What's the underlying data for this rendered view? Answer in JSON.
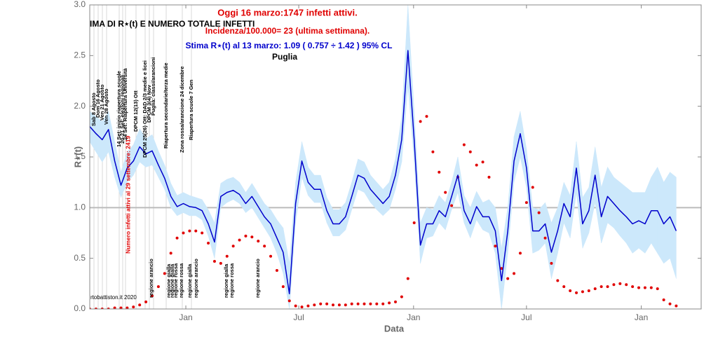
{
  "chart_data": {
    "type": "line",
    "title": "IMA DI R⋆(t) E NUMERO TOTALE INFETTI",
    "headline": "Oggi 16 marzo:1747 infetti attivi.",
    "incidence": "Incidenza/100.000= 23 (ultima settimana).",
    "estimate": "Stima R⋆(t) al 13 marzo: 1.09 ( 0.757 ÷ 1.42 ) 95% CL",
    "region": "Puglia",
    "credit": "rtobattiston.it 2020",
    "x_label": "Data",
    "y_label": "R⋆(t)",
    "red_note": "Numero infetti attivi al 29 settembre: 2419",
    "events": [
      "Sab 8 Agosto",
      "Dom 16 Agosto",
      "Ven 21 Agosto",
      "Ven 28 Agosto",
      "14 Set: inizio riapertura scuole",
      "20-21 Set: elezioni regionali",
      "24 Set: Riapertura Università",
      "DPCM 12(13) Ott",
      "DPCM 25(26) Ott: DAD 2/3 medie e licei",
      "DPCM 3(4) Nov",
      "Puglia: classi/arancioni",
      "Riapertura secondarie/terza medie",
      "Zona rossa/arancione 24 dicembre",
      "Riapertura scuole 7 Gen"
    ],
    "zones": [
      "regione arancio",
      "regione gialla",
      "regione gialla",
      "regione rossa",
      "regione rossa",
      "regione gialla",
      "regione arancio",
      "regione gialla",
      "regione rossa",
      "regione arancio"
    ],
    "xlim": [
      0,
      980
    ],
    "xticks": [
      {
        "value": 154,
        "label": "Jan"
      },
      {
        "value": 335,
        "label": "Jul"
      },
      {
        "value": 519,
        "label": "Jan"
      },
      {
        "value": 700,
        "label": "Jul"
      },
      {
        "value": 884,
        "label": "Jan"
      }
    ],
    "ylim": [
      0,
      3
    ],
    "yticks": [
      {
        "value": 0,
        "label": "0.0"
      },
      0.5,
      {
        "value": 1,
        "label": "1.0"
      },
      1.5,
      {
        "value": 2,
        "label": "2.0"
      },
      2.5,
      {
        "value": 3,
        "label": "3.0"
      }
    ],
    "reference_line": 1,
    "x": [
      0,
      10,
      20,
      30,
      40,
      50,
      60,
      70,
      80,
      90,
      100,
      110,
      120,
      130,
      140,
      150,
      160,
      170,
      180,
      190,
      200,
      210,
      220,
      230,
      240,
      250,
      260,
      270,
      280,
      290,
      300,
      310,
      320,
      330,
      340,
      350,
      360,
      370,
      380,
      390,
      400,
      410,
      420,
      430,
      440,
      450,
      460,
      470,
      480,
      490,
      500,
      510,
      520,
      530,
      540,
      550,
      560,
      570,
      580,
      590,
      600,
      610,
      620,
      630,
      640,
      650,
      660,
      670,
      680,
      690,
      700,
      710,
      720,
      730,
      740,
      750,
      760,
      770,
      780,
      790,
      800,
      810,
      820,
      830,
      840,
      850,
      860,
      870,
      880,
      890,
      900,
      910,
      920,
      930,
      940
    ],
    "series": [
      {
        "color": "#0000cc",
        "band_color": "#cce8fb",
        "values": [
          1.8,
          1.73,
          1.67,
          1.77,
          1.46,
          1.22,
          1.39,
          1.46,
          1.6,
          1.53,
          1.56,
          1.42,
          1.29,
          1.11,
          1.01,
          1.04,
          1.01,
          1.0,
          0.97,
          0.84,
          0.66,
          1.11,
          1.15,
          1.17,
          1.13,
          1.04,
          1.11,
          1.01,
          0.91,
          0.84,
          0.7,
          0.56,
          0.15,
          1.04,
          1.46,
          1.25,
          1.18,
          1.18,
          0.97,
          0.84,
          0.84,
          0.91,
          1.11,
          1.32,
          1.29,
          1.18,
          1.11,
          1.04,
          1.11,
          1.32,
          1.67,
          2.55,
          1.67,
          0.63,
          0.84,
          0.84,
          0.97,
          0.91,
          1.11,
          1.32,
          0.97,
          0.84,
          1.01,
          0.91,
          0.91,
          0.77,
          0.28,
          0.77,
          1.46,
          1.73,
          1.39,
          0.77,
          0.77,
          0.84,
          0.56,
          0.77,
          1.04,
          0.91,
          1.39,
          0.84,
          0.97,
          1.32,
          0.91,
          1.11,
          1.04,
          0.97,
          0.91,
          0.84,
          0.87,
          0.84,
          0.97,
          0.97,
          0.84,
          0.91,
          0.77
        ],
        "band_low": [
          1.65,
          1.55,
          1.45,
          1.55,
          1.3,
          1.1,
          1.25,
          1.32,
          1.45,
          1.4,
          1.42,
          1.3,
          1.18,
          1.0,
          0.92,
          0.95,
          0.92,
          0.92,
          0.88,
          0.72,
          0.5,
          1.0,
          1.05,
          1.08,
          1.04,
          0.95,
          1.0,
          0.9,
          0.8,
          0.7,
          0.55,
          0.35,
          0.0,
          0.85,
          1.3,
          1.12,
          1.05,
          1.05,
          0.85,
          0.72,
          0.72,
          0.78,
          0.98,
          1.18,
          1.15,
          1.05,
          0.98,
          0.92,
          0.98,
          1.18,
          1.45,
          2.2,
          1.45,
          0.45,
          0.7,
          0.72,
          0.85,
          0.78,
          0.98,
          1.15,
          0.85,
          0.7,
          0.88,
          0.78,
          0.75,
          0.55,
          0.0,
          0.55,
          1.25,
          1.5,
          1.2,
          0.55,
          0.58,
          0.65,
          0.3,
          0.55,
          0.85,
          0.7,
          1.15,
          0.6,
          0.75,
          1.05,
          0.65,
          0.85,
          0.8,
          0.72,
          0.65,
          0.55,
          0.6,
          0.55,
          0.65,
          0.55,
          0.45,
          0.5,
          0.3
        ],
        "band_high": [
          1.95,
          1.9,
          1.85,
          1.95,
          1.65,
          1.35,
          1.55,
          1.62,
          1.78,
          1.68,
          1.72,
          1.56,
          1.42,
          1.24,
          1.12,
          1.15,
          1.12,
          1.1,
          1.08,
          0.98,
          0.85,
          1.24,
          1.28,
          1.3,
          1.25,
          1.15,
          1.24,
          1.14,
          1.04,
          0.98,
          0.88,
          0.8,
          0.45,
          1.25,
          1.65,
          1.4,
          1.32,
          1.32,
          1.1,
          0.98,
          0.98,
          1.05,
          1.25,
          1.48,
          1.45,
          1.32,
          1.25,
          1.18,
          1.25,
          1.48,
          1.9,
          3.0,
          1.95,
          0.85,
          1.0,
          0.98,
          1.12,
          1.05,
          1.25,
          1.5,
          1.12,
          1.0,
          1.16,
          1.05,
          1.08,
          1.0,
          0.6,
          1.0,
          1.7,
          1.95,
          1.58,
          1.0,
          0.98,
          1.05,
          0.85,
          1.0,
          1.25,
          1.12,
          1.65,
          1.1,
          1.2,
          1.6,
          1.2,
          1.4,
          1.3,
          1.25,
          1.2,
          1.15,
          1.15,
          1.15,
          1.3,
          1.4,
          1.25,
          1.35,
          1.3
        ]
      },
      {
        "color": "#e00000",
        "style": "dots",
        "values": [
          0.0,
          0.0,
          0.0,
          0.0,
          0.01,
          0.01,
          0.01,
          0.02,
          0.04,
          0.07,
          0.13,
          0.22,
          0.35,
          0.55,
          0.7,
          0.75,
          0.77,
          0.77,
          0.75,
          0.65,
          0.47,
          0.45,
          0.52,
          0.62,
          0.68,
          0.72,
          0.71,
          0.67,
          0.62,
          0.52,
          0.38,
          0.22,
          0.08,
          0.03,
          0.02,
          0.03,
          0.04,
          0.05,
          0.05,
          0.04,
          0.04,
          0.04,
          0.05,
          0.05,
          0.05,
          0.05,
          0.05,
          0.05,
          0.06,
          0.07,
          0.12,
          0.3,
          0.85,
          1.85,
          1.9,
          1.55,
          1.35,
          1.15,
          1.02,
          1.3,
          1.62,
          1.55,
          1.42,
          1.45,
          1.3,
          0.62,
          0.4,
          0.3,
          0.35,
          0.55,
          1.05,
          1.2,
          0.95,
          0.7,
          0.45,
          0.28,
          0.22,
          0.18,
          0.16,
          0.17,
          0.18,
          0.2,
          0.22,
          0.22,
          0.24,
          0.25,
          0.24,
          0.22,
          0.21,
          0.21,
          0.21,
          0.2,
          0.09,
          0.05,
          0.03
        ]
      }
    ]
  }
}
